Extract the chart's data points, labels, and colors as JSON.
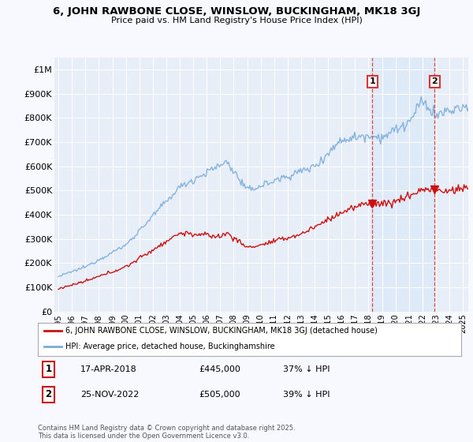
{
  "title": "6, JOHN RAWBONE CLOSE, WINSLOW, BUCKINGHAM, MK18 3GJ",
  "subtitle": "Price paid vs. HM Land Registry's House Price Index (HPI)",
  "background_color": "#f8f8ff",
  "plot_bg_color": "#e8eef8",
  "hpi_color": "#7aaddd",
  "price_color": "#cc1111",
  "vline_color": "#dd3333",
  "shade_color": "#d0e4f8",
  "purchase1_date_num": 2018.29,
  "purchase1_price": 445000,
  "purchase2_date_num": 2022.9,
  "purchase2_price": 505000,
  "ylim": [
    0,
    1050000
  ],
  "xlim": [
    1994.7,
    2025.4
  ],
  "yticks": [
    0,
    100000,
    200000,
    300000,
    400000,
    500000,
    600000,
    700000,
    800000,
    900000,
    1000000
  ],
  "ytick_labels": [
    "£0",
    "£100K",
    "£200K",
    "£300K",
    "£400K",
    "£500K",
    "£600K",
    "£700K",
    "£800K",
    "£900K",
    "£1M"
  ],
  "legend_label1": "6, JOHN RAWBONE CLOSE, WINSLOW, BUCKINGHAM, MK18 3GJ (detached house)",
  "legend_label2": "HPI: Average price, detached house, Buckinghamshire",
  "table_row1": [
    "1",
    "17-APR-2018",
    "£445,000",
    "37% ↓ HPI"
  ],
  "table_row2": [
    "2",
    "25-NOV-2022",
    "£505,000",
    "39% ↓ HPI"
  ],
  "footer": "Contains HM Land Registry data © Crown copyright and database right 2025.\nThis data is licensed under the Open Government Licence v3.0.",
  "xticks": [
    1995,
    1996,
    1997,
    1998,
    1999,
    2000,
    2001,
    2002,
    2003,
    2004,
    2005,
    2006,
    2007,
    2008,
    2009,
    2010,
    2011,
    2012,
    2013,
    2014,
    2015,
    2016,
    2017,
    2018,
    2019,
    2020,
    2021,
    2022,
    2023,
    2024,
    2025
  ]
}
